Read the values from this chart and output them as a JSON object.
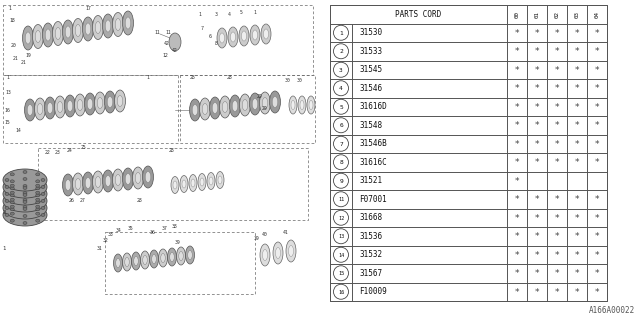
{
  "diagram_id": "A166A00022",
  "bg_color": "#ffffff",
  "table": {
    "col_headers": [
      "00",
      "01",
      "02",
      "03",
      "04"
    ],
    "rows": [
      {
        "num": "1",
        "part": "31530",
        "marks": [
          1,
          1,
          1,
          1,
          1
        ]
      },
      {
        "num": "2",
        "part": "31533",
        "marks": [
          1,
          1,
          1,
          1,
          1
        ]
      },
      {
        "num": "3",
        "part": "31545",
        "marks": [
          1,
          1,
          1,
          1,
          1
        ]
      },
      {
        "num": "4",
        "part": "31546",
        "marks": [
          1,
          1,
          1,
          1,
          1
        ]
      },
      {
        "num": "5",
        "part": "31616D",
        "marks": [
          1,
          1,
          1,
          1,
          1
        ]
      },
      {
        "num": "6",
        "part": "31548",
        "marks": [
          1,
          1,
          1,
          1,
          1
        ]
      },
      {
        "num": "7",
        "part": "31546B",
        "marks": [
          1,
          1,
          1,
          1,
          1
        ]
      },
      {
        "num": "8",
        "part": "31616C",
        "marks": [
          1,
          1,
          1,
          1,
          1
        ]
      },
      {
        "num": "9",
        "part": "31521",
        "marks": [
          1,
          0,
          0,
          0,
          0
        ]
      },
      {
        "num": "11",
        "part": "F07001",
        "marks": [
          1,
          1,
          1,
          1,
          1
        ]
      },
      {
        "num": "12",
        "part": "31668",
        "marks": [
          1,
          1,
          1,
          1,
          1
        ]
      },
      {
        "num": "13",
        "part": "31536",
        "marks": [
          1,
          1,
          1,
          1,
          1
        ]
      },
      {
        "num": "14",
        "part": "31532",
        "marks": [
          1,
          1,
          1,
          1,
          1
        ]
      },
      {
        "num": "15",
        "part": "31567",
        "marks": [
          1,
          1,
          1,
          1,
          1
        ]
      },
      {
        "num": "16",
        "part": "F10009",
        "marks": [
          1,
          1,
          1,
          1,
          1
        ]
      }
    ]
  }
}
